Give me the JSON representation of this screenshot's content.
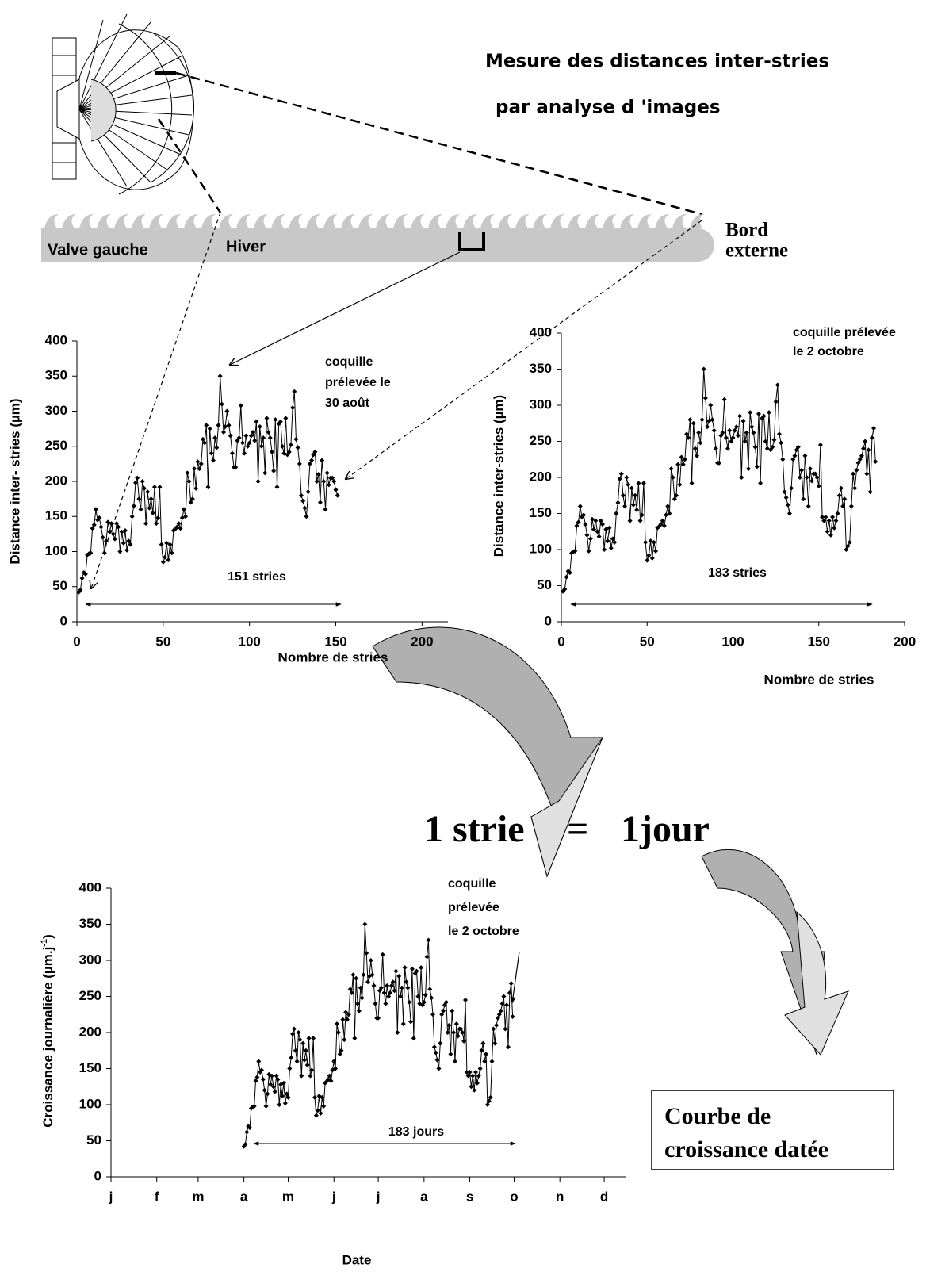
{
  "diagram": {
    "heading": [
      "Mesure des distances inter-stries",
      "par analyse d 'images"
    ],
    "valve": "Valve gauche",
    "winter": "Hiver",
    "edge": [
      "Bord",
      "externe"
    ],
    "equation": [
      "1 strie",
      "=",
      "1jour"
    ],
    "result": [
      "Courbe de",
      "croissance datée"
    ]
  },
  "chart_data": [
    {
      "type": "line",
      "xlabel": "Nombre de stries",
      "ylabel": "Distance inter- stries (µm)",
      "color": "#000000",
      "annotations": [
        [
          "coquille",
          "prélevée le",
          "30 août"
        ],
        [
          "151 stries"
        ]
      ],
      "xlim": [
        0,
        215
      ],
      "ylim": [
        0,
        400
      ],
      "xticks": [
        0,
        50,
        100,
        150,
        200
      ],
      "yticks": [
        0,
        50,
        100,
        150,
        200,
        250,
        300,
        350,
        400
      ],
      "x": [
        1,
        2,
        3,
        4,
        5,
        6,
        7,
        8,
        9,
        10,
        11,
        12,
        13,
        14,
        15,
        16,
        17,
        18,
        19,
        20,
        21,
        22,
        23,
        24,
        25,
        26,
        27,
        28,
        29,
        30,
        31,
        32,
        33,
        34,
        35,
        36,
        37,
        38,
        39,
        40,
        41,
        42,
        43,
        44,
        45,
        46,
        47,
        48,
        49,
        50,
        51,
        52,
        53,
        54,
        55,
        56,
        57,
        58,
        59,
        60,
        61,
        62,
        63,
        64,
        65,
        66,
        67,
        68,
        69,
        70,
        71,
        72,
        73,
        74,
        75,
        76,
        77,
        78,
        79,
        80,
        81,
        82,
        83,
        84,
        85,
        86,
        87,
        88,
        89,
        90,
        91,
        92,
        93,
        94,
        95,
        96,
        97,
        98,
        99,
        100,
        101,
        102,
        103,
        104,
        105,
        106,
        107,
        108,
        109,
        110,
        111,
        112,
        113,
        114,
        115,
        116,
        117,
        118,
        119,
        120,
        121,
        122,
        123,
        124,
        125,
        126,
        127,
        128,
        129,
        130,
        131,
        132,
        133,
        134,
        135,
        136,
        137,
        138,
        139,
        140,
        141,
        142,
        143,
        144,
        145,
        146,
        147,
        148,
        149,
        150,
        151
      ],
      "values": [
        42,
        45,
        62,
        70,
        68,
        95,
        97,
        98,
        133,
        138,
        160,
        145,
        148,
        135,
        120,
        98,
        115,
        142,
        128,
        140,
        125,
        118,
        140,
        135,
        100,
        128,
        112,
        130,
        102,
        115,
        110,
        150,
        165,
        198,
        205,
        175,
        160,
        200,
        190,
        140,
        185,
        162,
        175,
        155,
        192,
        140,
        148,
        192,
        110,
        85,
        92,
        112,
        88,
        110,
        98,
        130,
        132,
        135,
        140,
        133,
        148,
        160,
        150,
        212,
        200,
        170,
        175,
        218,
        190,
        228,
        218,
        225,
        260,
        255,
        280,
        192,
        275,
        240,
        230,
        262,
        248,
        280,
        350,
        310,
        270,
        278,
        300,
        280,
        265,
        240,
        220,
        220,
        258,
        262,
        308,
        255,
        240,
        265,
        250,
        255,
        265,
        270,
        258,
        285,
        200,
        278,
        250,
        262,
        212,
        290,
        270,
        262,
        242,
        215,
        288,
        192,
        282,
        285,
        250,
        240,
        290,
        238,
        242,
        252,
        305,
        328,
        260,
        248,
        225,
        180,
        172,
        162,
        150,
        185,
        225,
        230,
        238,
        242,
        200,
        210,
        170,
        230,
        200,
        160,
        212,
        195,
        205,
        205,
        200,
        188,
        180
      ]
    },
    {
      "type": "line",
      "xlabel": "Nombre de stries",
      "ylabel": "Distance inter-stries (µm)",
      "color": "#000000",
      "annotations": [
        [
          "coquille prélevée",
          "le 2 octobre"
        ],
        [
          "183 stries"
        ]
      ],
      "xlim": [
        0,
        200
      ],
      "ylim": [
        0,
        400
      ],
      "xticks": [
        0,
        50,
        100,
        150,
        200
      ],
      "yticks": [
        0,
        50,
        100,
        150,
        200,
        250,
        300,
        350,
        400
      ],
      "x": [
        1,
        2,
        3,
        4,
        5,
        6,
        7,
        8,
        9,
        10,
        11,
        12,
        13,
        14,
        15,
        16,
        17,
        18,
        19,
        20,
        21,
        22,
        23,
        24,
        25,
        26,
        27,
        28,
        29,
        30,
        31,
        32,
        33,
        34,
        35,
        36,
        37,
        38,
        39,
        40,
        41,
        42,
        43,
        44,
        45,
        46,
        47,
        48,
        49,
        50,
        51,
        52,
        53,
        54,
        55,
        56,
        57,
        58,
        59,
        60,
        61,
        62,
        63,
        64,
        65,
        66,
        67,
        68,
        69,
        70,
        71,
        72,
        73,
        74,
        75,
        76,
        77,
        78,
        79,
        80,
        81,
        82,
        83,
        84,
        85,
        86,
        87,
        88,
        89,
        90,
        91,
        92,
        93,
        94,
        95,
        96,
        97,
        98,
        99,
        100,
        101,
        102,
        103,
        104,
        105,
        106,
        107,
        108,
        109,
        110,
        111,
        112,
        113,
        114,
        115,
        116,
        117,
        118,
        119,
        120,
        121,
        122,
        123,
        124,
        125,
        126,
        127,
        128,
        129,
        130,
        131,
        132,
        133,
        134,
        135,
        136,
        137,
        138,
        139,
        140,
        141,
        142,
        143,
        144,
        145,
        146,
        147,
        148,
        149,
        150,
        151,
        152,
        153,
        154,
        155,
        156,
        157,
        158,
        159,
        160,
        161,
        162,
        163,
        164,
        165,
        166,
        167,
        168,
        169,
        170,
        171,
        172,
        173,
        174,
        175,
        176,
        177,
        178,
        179,
        180,
        181,
        182,
        183
      ],
      "values": [
        42,
        45,
        62,
        70,
        68,
        95,
        97,
        98,
        133,
        138,
        160,
        145,
        148,
        135,
        120,
        98,
        115,
        142,
        128,
        140,
        125,
        118,
        140,
        135,
        100,
        128,
        112,
        130,
        102,
        115,
        110,
        150,
        165,
        198,
        205,
        175,
        160,
        200,
        190,
        140,
        185,
        162,
        175,
        155,
        192,
        140,
        148,
        192,
        110,
        85,
        92,
        112,
        88,
        110,
        98,
        130,
        132,
        135,
        140,
        133,
        148,
        160,
        150,
        212,
        200,
        170,
        175,
        218,
        190,
        228,
        218,
        225,
        260,
        255,
        280,
        192,
        275,
        240,
        230,
        262,
        248,
        280,
        350,
        310,
        270,
        278,
        300,
        280,
        265,
        240,
        220,
        220,
        258,
        262,
        308,
        255,
        240,
        265,
        250,
        255,
        265,
        270,
        258,
        285,
        200,
        278,
        250,
        262,
        212,
        290,
        270,
        262,
        242,
        215,
        288,
        192,
        282,
        285,
        250,
        240,
        290,
        238,
        242,
        252,
        305,
        328,
        260,
        248,
        225,
        180,
        172,
        162,
        150,
        185,
        225,
        230,
        238,
        242,
        200,
        210,
        170,
        230,
        200,
        160,
        212,
        195,
        205,
        205,
        200,
        188,
        245,
        145,
        140,
        145,
        125,
        140,
        120,
        145,
        130,
        140,
        150,
        175,
        185,
        160,
        170,
        100,
        105,
        110,
        160,
        205,
        185,
        210,
        220,
        225,
        230,
        240,
        250,
        205,
        238,
        180,
        255,
        268,
        222
      ]
    },
    {
      "type": "line",
      "xlabel": "Date",
      "ylabel": [
        "Croissance journalière (µm.j",
        "-1",
        ")"
      ],
      "color": "#000000",
      "annotations": [
        [
          "coquille",
          "prélevée",
          "le 2 octobre"
        ],
        [
          "183 jours"
        ]
      ],
      "xlim": [
        1,
        350
      ],
      "ylim": [
        0,
        400
      ],
      "xticks": [
        {
          "value": 1,
          "label": "j"
        },
        {
          "value": 32,
          "label": "f"
        },
        {
          "value": 60,
          "label": "m"
        },
        {
          "value": 91,
          "label": "a"
        },
        {
          "value": 121,
          "label": "m"
        },
        {
          "value": 152,
          "label": "j"
        },
        {
          "value": 182,
          "label": "j"
        },
        {
          "value": 213,
          "label": "a"
        },
        {
          "value": 244,
          "label": "s"
        },
        {
          "value": 274,
          "label": "o"
        },
        {
          "value": 305,
          "label": "n"
        },
        {
          "value": 335,
          "label": "d"
        }
      ],
      "yticks": [
        0,
        50,
        100,
        150,
        200,
        250,
        300,
        350,
        400
      ],
      "x": [
        91,
        92,
        93,
        94,
        95,
        96,
        97,
        98,
        99,
        100,
        101,
        102,
        103,
        104,
        105,
        106,
        107,
        108,
        109,
        110,
        111,
        112,
        113,
        114,
        115,
        116,
        117,
        118,
        119,
        120,
        121,
        122,
        123,
        124,
        125,
        126,
        127,
        128,
        129,
        130,
        131,
        132,
        133,
        134,
        135,
        136,
        137,
        138,
        139,
        140,
        141,
        142,
        143,
        144,
        145,
        146,
        147,
        148,
        149,
        150,
        151,
        152,
        153,
        154,
        155,
        156,
        157,
        158,
        159,
        160,
        161,
        162,
        163,
        164,
        165,
        166,
        167,
        168,
        169,
        170,
        171,
        172,
        173,
        174,
        175,
        176,
        177,
        178,
        179,
        180,
        181,
        182,
        183,
        184,
        185,
        186,
        187,
        188,
        189,
        190,
        191,
        192,
        193,
        194,
        195,
        196,
        197,
        198,
        199,
        200,
        201,
        202,
        203,
        204,
        205,
        206,
        207,
        208,
        209,
        210,
        211,
        212,
        213,
        214,
        215,
        216,
        217,
        218,
        219,
        220,
        221,
        222,
        223,
        224,
        225,
        226,
        227,
        228,
        229,
        230,
        231,
        232,
        233,
        234,
        235,
        236,
        237,
        238,
        239,
        240,
        241,
        242,
        243,
        244,
        245,
        246,
        247,
        248,
        249,
        250,
        251,
        252,
        253,
        254,
        255,
        256,
        257,
        258,
        259,
        260,
        261,
        262,
        263,
        264,
        265,
        266,
        267,
        268,
        269,
        270,
        271,
        272,
        273
      ],
      "values": [
        42,
        45,
        62,
        70,
        68,
        95,
        97,
        98,
        133,
        138,
        160,
        145,
        148,
        135,
        120,
        98,
        115,
        142,
        128,
        140,
        125,
        118,
        140,
        135,
        100,
        128,
        112,
        130,
        102,
        115,
        110,
        150,
        165,
        198,
        205,
        175,
        160,
        200,
        190,
        140,
        185,
        162,
        175,
        155,
        192,
        140,
        148,
        192,
        110,
        85,
        92,
        112,
        88,
        110,
        98,
        130,
        132,
        135,
        140,
        133,
        148,
        160,
        150,
        212,
        200,
        170,
        175,
        218,
        190,
        228,
        218,
        225,
        260,
        255,
        280,
        192,
        275,
        240,
        230,
        262,
        248,
        280,
        350,
        310,
        270,
        278,
        300,
        280,
        265,
        240,
        220,
        220,
        258,
        262,
        308,
        255,
        240,
        265,
        250,
        255,
        265,
        270,
        258,
        285,
        200,
        278,
        250,
        262,
        212,
        290,
        270,
        262,
        242,
        215,
        288,
        192,
        282,
        285,
        250,
        240,
        290,
        238,
        242,
        252,
        305,
        328,
        260,
        248,
        225,
        180,
        172,
        162,
        150,
        185,
        225,
        230,
        238,
        242,
        200,
        210,
        170,
        230,
        200,
        160,
        212,
        195,
        205,
        205,
        200,
        188,
        245,
        145,
        140,
        145,
        125,
        140,
        120,
        145,
        130,
        140,
        150,
        175,
        185,
        160,
        170,
        100,
        105,
        110,
        160,
        205,
        185,
        210,
        220,
        225,
        230,
        240,
        250,
        205,
        238,
        180,
        255,
        268,
        222
      ]
    }
  ]
}
